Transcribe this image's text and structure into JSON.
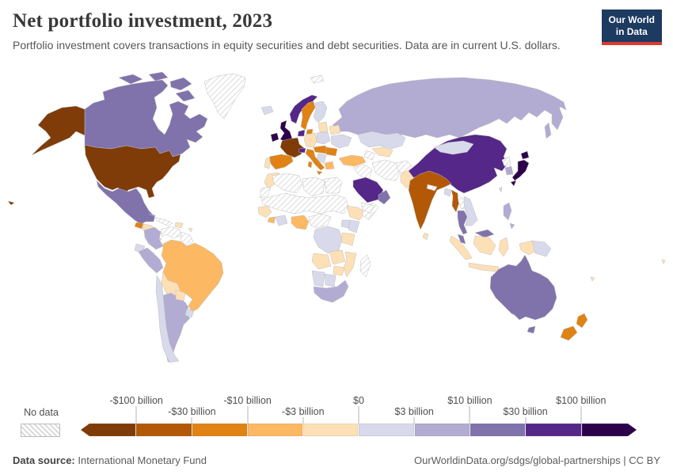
{
  "header": {
    "title": "Net portfolio investment, 2023",
    "subtitle": "Portfolio investment covers transactions in equity securities and debt securities. Data are in current U.S. dollars.",
    "logo_line1": "Our World",
    "logo_line2": "in Data"
  },
  "legend": {
    "no_data_label": "No data",
    "bin_colors": [
      "#7f3b08",
      "#b35806",
      "#e08214",
      "#fdb863",
      "#fee0b6",
      "#d8daeb",
      "#b2abd2",
      "#8073ac",
      "#542788",
      "#2d004b"
    ],
    "ticks": [
      "-$100 billion",
      "-$30 billion",
      "-$10 billion",
      "-$3 billion",
      "$0",
      "$3 billion",
      "$10 billion",
      "$30 billion",
      "$100 billion"
    ]
  },
  "map": {
    "no_data_fill": "diagonal-hatch",
    "countries": {
      "united-states": 0,
      "france": 0,
      "india": 1,
      "myanmar": 1,
      "sweden": 2,
      "denmark": 2,
      "spain": 2,
      "italy": 2,
      "austria-hungary": 2,
      "romania": 2,
      "new-zealand": 2,
      "guatemala": 2,
      "sierra-leone-liberia": 3,
      "turkey": 3,
      "greece": 3,
      "brazil": 3,
      "nigeria": 3,
      "honduras-nicaragua": 4,
      "hispaniola": 4,
      "caribbean-islands": 4,
      "bolivia": 4,
      "paraguay": 4,
      "portugal": 4,
      "baltics": 4,
      "germany": 4,
      "belarus": 4,
      "morocco": 4,
      "senegal-guinea": 4,
      "ethiopia": 4,
      "tanzania": 4,
      "angola": 4,
      "zambia": 4,
      "mozambique": 4,
      "zimbabwe": 4,
      "pakistan": 4,
      "sri-lanka": 4,
      "uzbekistan": 4,
      "indonesia": 4,
      "pacific-islands": 4,
      "costa-rica-panama": 5,
      "ecuador": 5,
      "chile": 5,
      "uruguay": 5,
      "iceland": 5,
      "finland": 5,
      "poland": 5,
      "ukraine": 5,
      "balkans": 5,
      "kazakhstan": 5,
      "mongolia": 5,
      "bangladesh": 5,
      "vietnam": 5,
      "taiwan": 5,
      "ghana-ivory-coast": 5,
      "dr-congo": 5,
      "kenya": 5,
      "uganda": 5,
      "namibia": 5,
      "botswana": 5,
      "papua-new-guinea": 5,
      "russia": 6,
      "colombia": 6,
      "peru": 6,
      "argentina": 6,
      "south-africa": 6,
      "south-korea": 6,
      "philippines": 6,
      "canada": 7,
      "mexico": 7,
      "thailand": 7,
      "malaysia": 7,
      "australia": 7,
      "oman": 7,
      "china": 8,
      "saudi-arabia": 8,
      "norway": 8,
      "netherlands-belgium": 8,
      "switzerland": 8,
      "united-kingdom": 9,
      "ireland": 9,
      "japan": 9,
      "greenland": "no-data",
      "svalbard": "no-data",
      "cuba": "no-data",
      "venezuela": "no-data",
      "guyana": "no-data",
      "western-sahara": "no-data",
      "algeria": "no-data",
      "libya": "no-data",
      "egypt": "no-data",
      "sahel-sudan": "no-data",
      "cameroon-car": "no-data",
      "somalia": "no-data",
      "madagascar": "no-data",
      "syria-iraq": "no-data",
      "iran": "no-data",
      "afghanistan": "no-data",
      "turkmenistan": "no-data",
      "yemen": "no-data",
      "nepal": "no-data",
      "laos": "no-data",
      "north-korea": "no-data"
    }
  },
  "footer": {
    "source_label": "Data source:",
    "source_value": "International Monetary Fund",
    "link": "OurWorldinData.org/sdgs/global-partnerships | CC BY"
  }
}
